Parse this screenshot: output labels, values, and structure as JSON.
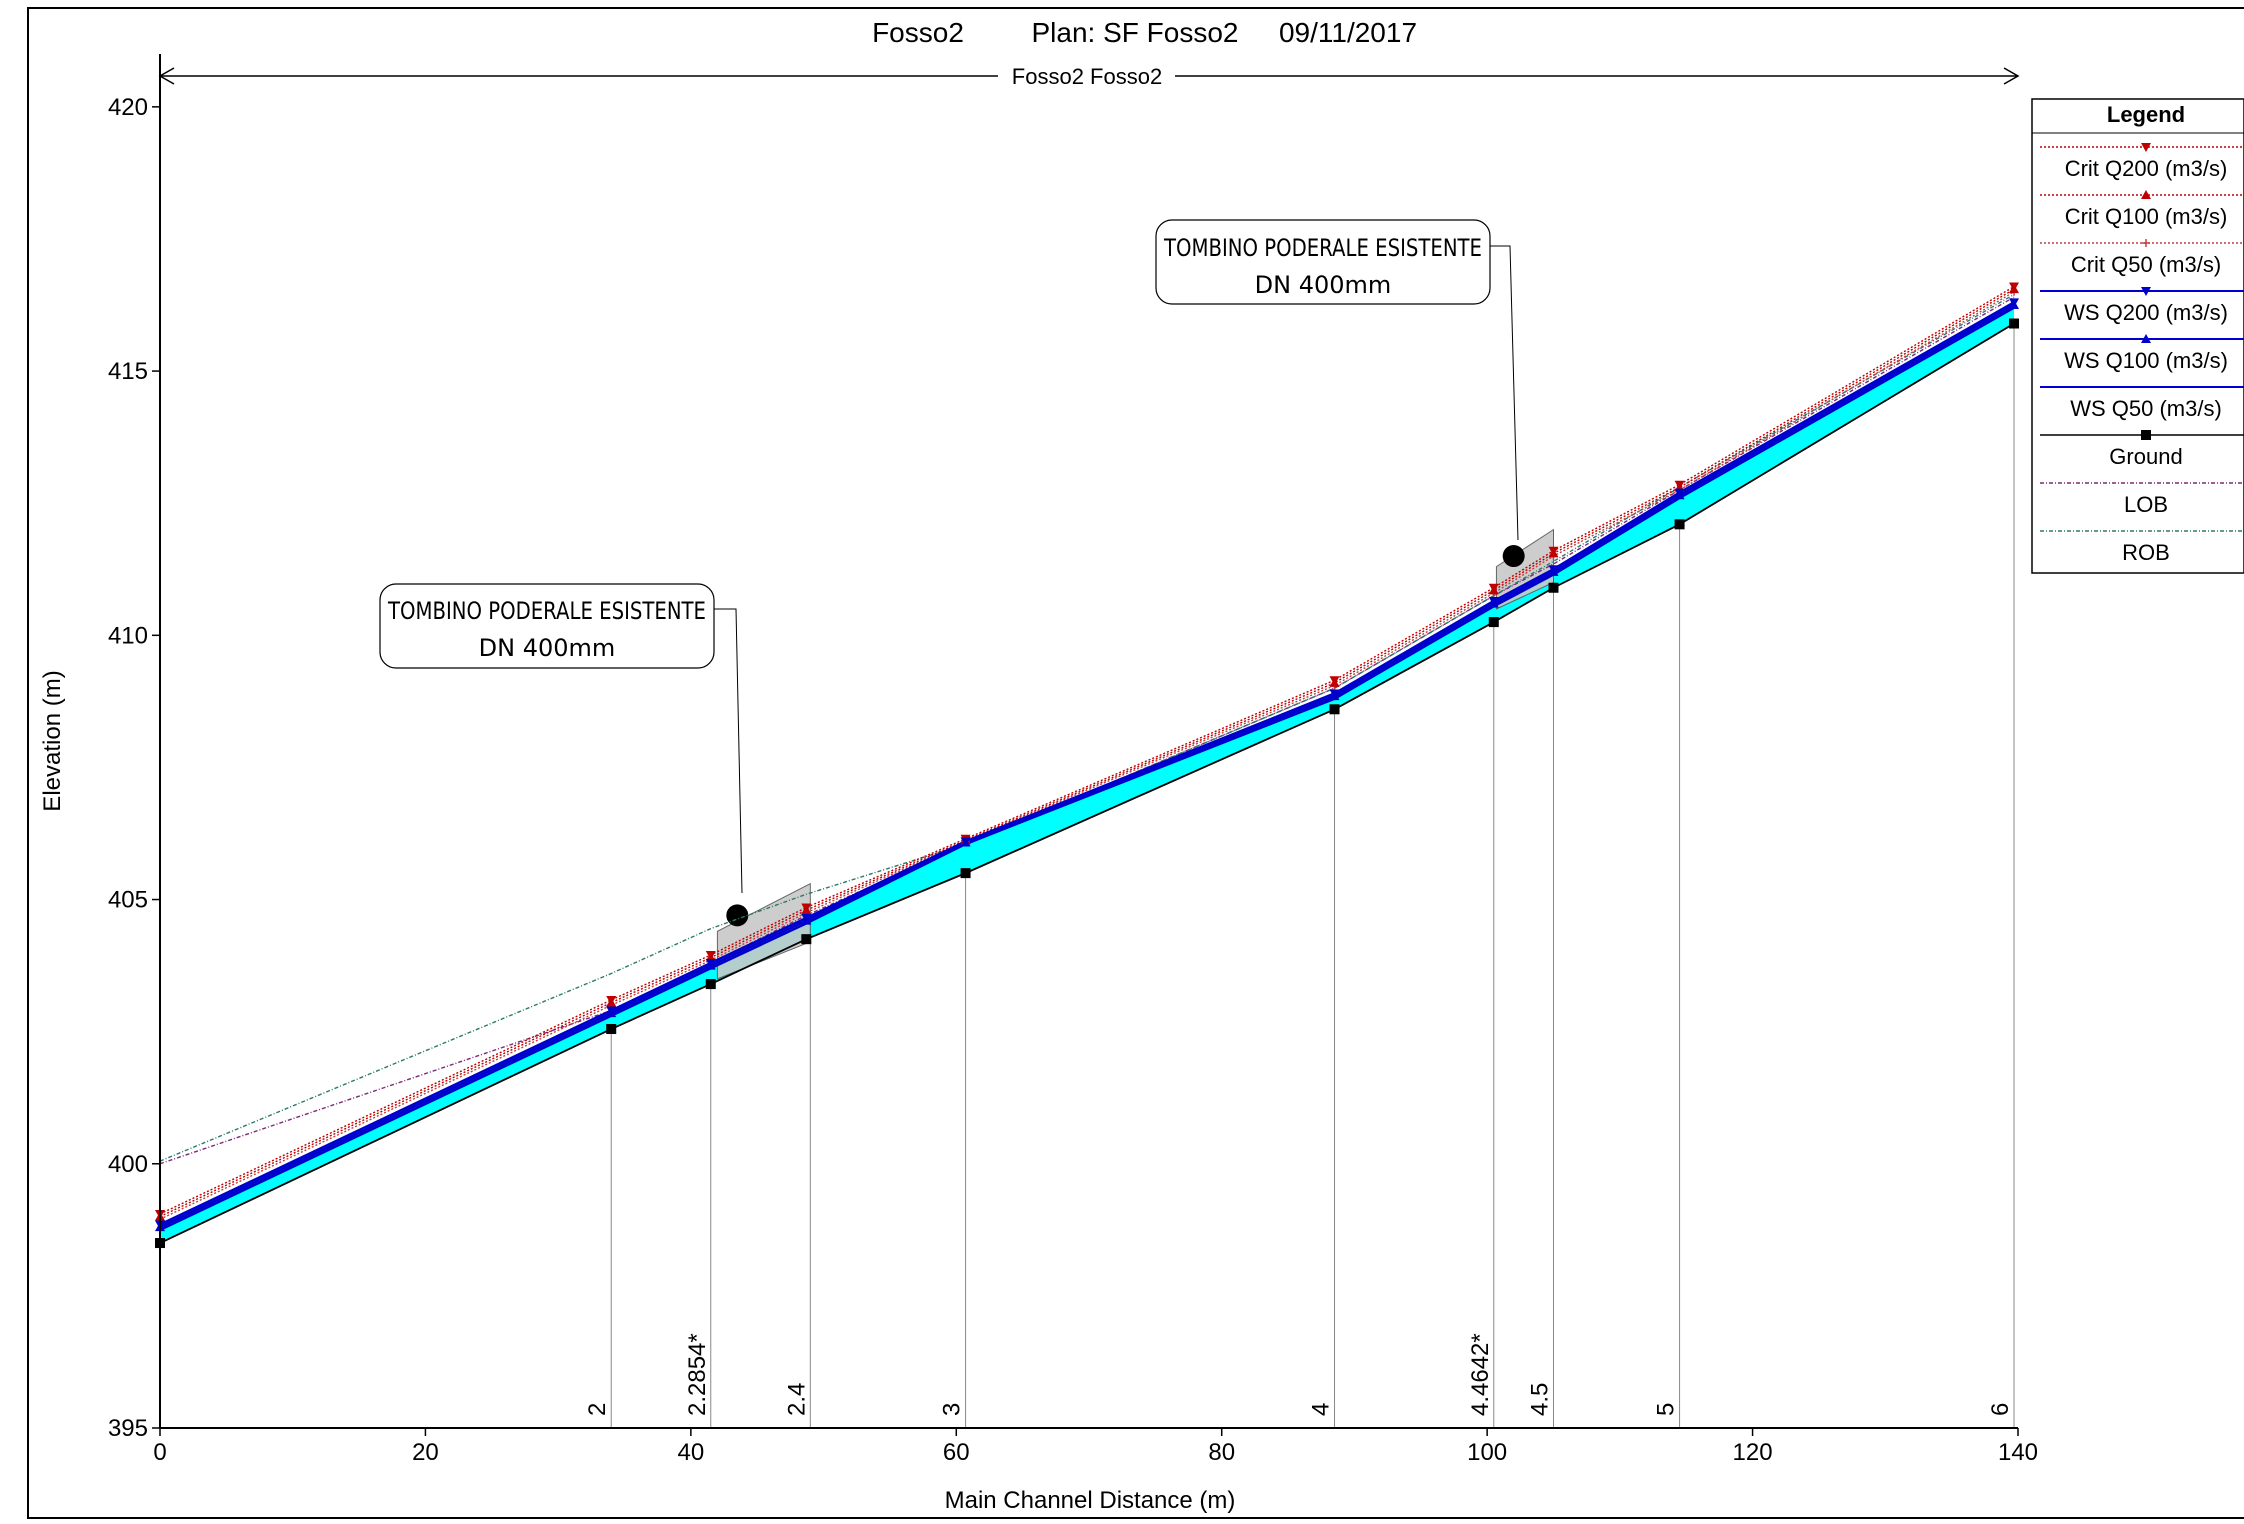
{
  "header": {
    "project": "Fosso2",
    "plan": "Plan: SF Fosso2",
    "date": "09/11/2017"
  },
  "reach_label": "Fosso2 Fosso2",
  "callouts": [
    {
      "line1": "TOMBINO PODERALE ESISTENTE",
      "line2": "DN 400mm",
      "x": 43.5,
      "y": 404.7
    },
    {
      "line1": "TOMBINO PODERALE ESISTENTE",
      "line2": "DN 400mm",
      "x": 102,
      "y": 411.5
    }
  ],
  "legend": {
    "title": "Legend",
    "items": [
      {
        "label": "Crit  Q200 (m3/s)",
        "color": "#c00000",
        "marker": "triangle-down",
        "dash": "2,2"
      },
      {
        "label": "Crit  Q100 (m3/s)",
        "color": "#c00000",
        "marker": "triangle-up",
        "dash": "2,2"
      },
      {
        "label": "Crit  Q50 (m3/s)",
        "color": "#c04040",
        "marker": "plus",
        "dash": "2,2"
      },
      {
        "label": "WS  Q200 (m3/s)",
        "color": "#0000cc",
        "marker": "triangle-down",
        "dash": ""
      },
      {
        "label": "WS  Q100 (m3/s)",
        "color": "#0000cc",
        "marker": "triangle-up",
        "dash": ""
      },
      {
        "label": "WS  Q50 (m3/s)",
        "color": "#0000cc",
        "marker": "none",
        "dash": ""
      },
      {
        "label": "Ground",
        "color": "#000000",
        "marker": "square",
        "dash": ""
      },
      {
        "label": "LOB",
        "color": "#7a2a7a",
        "marker": "none",
        "dash": "4,2,1,2"
      },
      {
        "label": "ROB",
        "color": "#2a7a6a",
        "marker": "none",
        "dash": "4,2,1,2"
      }
    ]
  },
  "chart_data": {
    "type": "line",
    "xlabel": "Main Channel Distance (m)",
    "ylabel": "Elevation (m)",
    "xlim": [
      0,
      140
    ],
    "ylim": [
      395,
      421
    ],
    "xticks": [
      0,
      20,
      40,
      60,
      80,
      100,
      120,
      140
    ],
    "yticks": [
      395,
      400,
      405,
      410,
      415,
      420
    ],
    "grid": false,
    "legend_position": "right",
    "water_fill_color": "#00ffff",
    "culvert_color": "#c8c8c8",
    "stations": [
      {
        "label": "2",
        "x": 34
      },
      {
        "label": "2.2854*",
        "x": 41.5
      },
      {
        "label": "2.4",
        "x": 49
      },
      {
        "label": "3",
        "x": 60.7
      },
      {
        "label": "4",
        "x": 88.5
      },
      {
        "label": "4.4642*",
        "x": 100.5
      },
      {
        "label": "4.5",
        "x": 105
      },
      {
        "label": "5",
        "x": 114.5
      },
      {
        "label": "6",
        "x": 139.7
      }
    ],
    "series": [
      {
        "name": "Ground",
        "x": [
          0,
          34,
          41.5,
          48.7,
          60.7,
          88.5,
          100.5,
          105,
          114.5,
          139.7
        ],
        "y": [
          398.5,
          402.55,
          403.4,
          404.25,
          405.5,
          408.6,
          410.25,
          410.9,
          412.1,
          415.9
        ]
      },
      {
        "name": "WS  Q50 (m3/s)",
        "x": [
          0,
          34,
          41.5,
          48.7,
          60.7,
          88.5,
          100.5,
          105,
          114.5,
          139.7
        ],
        "y": [
          398.75,
          402.8,
          403.7,
          404.55,
          406.05,
          408.8,
          410.55,
          411.15,
          412.6,
          416.2
        ]
      },
      {
        "name": "WS  Q100 (m3/s)",
        "x": [
          0,
          34,
          41.5,
          48.7,
          60.7,
          88.5,
          100.5,
          105,
          114.5,
          139.7
        ],
        "y": [
          398.8,
          402.85,
          403.75,
          404.6,
          406.08,
          408.85,
          410.6,
          411.2,
          412.65,
          416.25
        ]
      },
      {
        "name": "WS  Q200 (m3/s)",
        "x": [
          0,
          34,
          41.5,
          48.7,
          60.7,
          88.5,
          100.5,
          105,
          114.5,
          139.7
        ],
        "y": [
          398.85,
          402.9,
          403.8,
          404.65,
          406.1,
          408.9,
          410.65,
          411.25,
          412.7,
          416.3
        ]
      },
      {
        "name": "Crit  Q50 (m3/s)",
        "x": [
          0,
          34,
          41.5,
          48.7,
          60.7,
          88.5,
          100.5,
          105,
          114.5,
          139.7
        ],
        "y": [
          398.95,
          403.0,
          403.85,
          404.75,
          406.1,
          409.05,
          410.8,
          411.5,
          412.75,
          416.5
        ]
      },
      {
        "name": "Crit  Q100 (m3/s)",
        "x": [
          0,
          34,
          41.5,
          48.7,
          60.7,
          88.5,
          100.5,
          105,
          114.5,
          139.7
        ],
        "y": [
          399.0,
          403.05,
          403.9,
          404.8,
          406.12,
          409.1,
          410.85,
          411.55,
          412.8,
          416.55
        ]
      },
      {
        "name": "Crit  Q200 (m3/s)",
        "x": [
          0,
          34,
          41.5,
          48.7,
          60.7,
          88.5,
          100.5,
          105,
          114.5,
          139.7
        ],
        "y": [
          399.05,
          403.1,
          403.95,
          404.85,
          406.15,
          409.15,
          410.9,
          411.6,
          412.85,
          416.6
        ]
      },
      {
        "name": "LOB",
        "x": [
          0,
          34,
          41.5,
          48.7,
          60.7,
          88.5,
          100.5,
          105,
          114.5,
          139.7
        ],
        "y": [
          400.0,
          402.9,
          403.8,
          404.7,
          406.05,
          409.0,
          410.75,
          411.35,
          412.75,
          416.4
        ]
      },
      {
        "name": "ROB",
        "x": [
          0,
          34,
          41.5,
          48.7,
          60.7,
          88.5,
          100.5,
          105,
          114.5,
          139.7
        ],
        "y": [
          400.05,
          403.6,
          404.45,
          405.1,
          406.05,
          409.0,
          410.75,
          411.4,
          412.8,
          416.45
        ]
      }
    ],
    "culverts": [
      {
        "x_start": 42,
        "x_end": 49,
        "bottom_start": 403.5,
        "bottom_end": 404.2,
        "top_start": 404.4,
        "top_end": 405.3
      },
      {
        "x_start": 100.7,
        "x_end": 105,
        "bottom_start": 410.5,
        "bottom_end": 411.0,
        "top_start": 411.3,
        "top_end": 412.0
      }
    ]
  }
}
